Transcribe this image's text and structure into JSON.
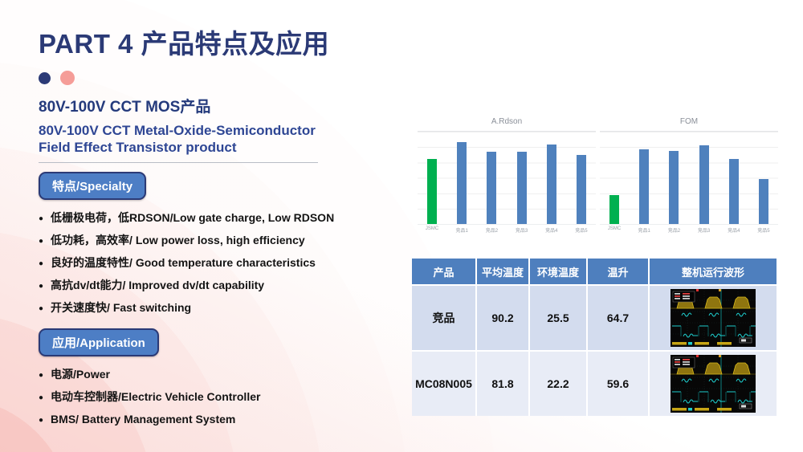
{
  "slide": {
    "title": "PART 4 产品特点及应用",
    "product_title": "80V-100V CCT MOS产品",
    "product_subtitle": "80V-100V CCT Metal-Oxide-Semiconductor Field Effect Transistor product"
  },
  "specialty": {
    "label": "特点/Specialty",
    "items": [
      "低栅极电荷，低RDSON/Low gate charge, Low RDSON",
      "低功耗，高效率/ Low power loss, high efficiency",
      "良好的温度特性/ Good temperature characteristics",
      "高抗dv/dt能力/ Improved dv/dt capability",
      "开关速度快/ Fast switching"
    ]
  },
  "application": {
    "label": "应用/Application",
    "items": [
      "电源/Power",
      "电动车控制器/Electric Vehicle Controller",
      "BMS/ Battery Management System"
    ]
  },
  "chart_data": [
    {
      "type": "bar",
      "title": "A.Rdson",
      "categories": [
        "JSMC",
        "竞品1",
        "竞品2",
        "竞品3",
        "竞品4",
        "竞品5"
      ],
      "values": [
        0.7,
        0.89,
        0.78,
        0.78,
        0.86,
        0.75
      ],
      "bar_colors": [
        "#00b050",
        "#4f81bd",
        "#4f81bd",
        "#4f81bd",
        "#4f81bd",
        "#4f81bd"
      ],
      "xlabel": "",
      "ylabel": "",
      "ylim": [
        0,
        1
      ],
      "grid": true,
      "legend": "none"
    },
    {
      "type": "bar",
      "title": "FOM",
      "categories": [
        "JSMC",
        "竞品1",
        "竞品2",
        "竞品3",
        "竞品4",
        "竞品5"
      ],
      "values": [
        0.31,
        0.81,
        0.79,
        0.85,
        0.7,
        0.49
      ],
      "bar_colors": [
        "#00b050",
        "#4f81bd",
        "#4f81bd",
        "#4f81bd",
        "#4f81bd",
        "#4f81bd"
      ],
      "xlabel": "",
      "ylabel": "",
      "ylim": [
        0,
        1
      ],
      "grid": true,
      "legend": "none"
    }
  ],
  "table": {
    "headers": [
      "产品",
      "平均温度",
      "环境温度",
      "温升",
      "整机运行波形"
    ],
    "rows": [
      {
        "cells": [
          "竞品",
          "90.2",
          "25.5",
          "64.7"
        ],
        "waveform_icon": "oscilloscope-waveform"
      },
      {
        "cells": [
          "MC08N005",
          "81.8",
          "22.2",
          "59.6"
        ],
        "waveform_icon": "oscilloscope-waveform"
      }
    ]
  },
  "colors": {
    "accent_navy": "#2b3a76",
    "accent_pink": "#f59d98",
    "button_blue": "#4d7ec5",
    "table_header_blue": "#4e7fbe",
    "row_light": "#d3dcee",
    "row_lighter": "#e8ecf6",
    "bar_blue": "#4f81bd",
    "bar_green": "#00b050"
  },
  "icons": {
    "bullet": "●"
  }
}
